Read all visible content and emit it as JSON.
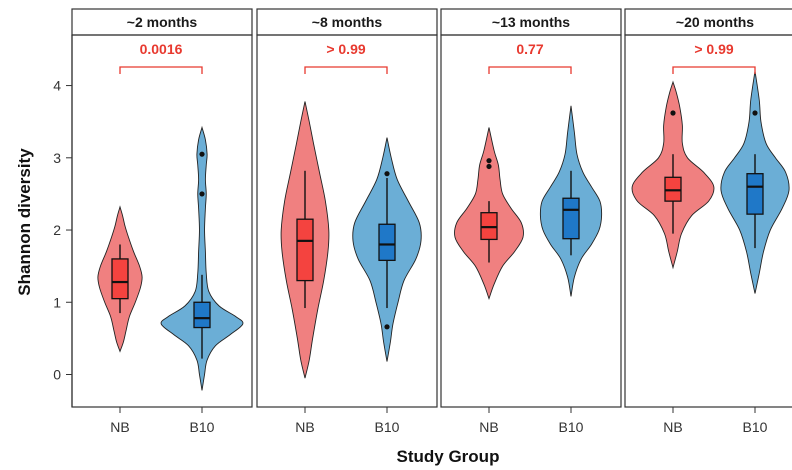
{
  "chart_data": {
    "type": "violin",
    "xlabel": "Study Group",
    "ylabel": "Shannon diversity",
    "ylim": [
      -0.45,
      4.7
    ],
    "yticks": [
      0,
      1,
      2,
      3,
      4
    ],
    "groups": [
      "NB",
      "B10"
    ],
    "colors": {
      "NB": "#F08080",
      "B10": "#6BAED6",
      "NB_box": "#F4433F",
      "B10_box": "#1F78C8",
      "pvalue": "#E8392F"
    },
    "panels": [
      {
        "label": "~2 months",
        "pvalue": "0.0016",
        "violins": [
          {
            "group": "NB",
            "min": 0.32,
            "max": 2.32,
            "profile": [
              [
                0.32,
                0.0
              ],
              [
                0.45,
                0.04
              ],
              [
                0.6,
                0.07
              ],
              [
                0.8,
                0.11
              ],
              [
                1.0,
                0.18
              ],
              [
                1.2,
                0.24
              ],
              [
                1.35,
                0.26
              ],
              [
                1.5,
                0.23
              ],
              [
                1.7,
                0.16
              ],
              [
                1.9,
                0.1
              ],
              [
                2.05,
                0.06
              ],
              [
                2.2,
                0.03
              ],
              [
                2.32,
                0.0
              ]
            ],
            "box": {
              "q1": 1.05,
              "median": 1.28,
              "q3": 1.6,
              "whisker_low": 0.85,
              "whisker_high": 1.8
            },
            "outliers": []
          },
          {
            "group": "B10",
            "min": -0.22,
            "max": 3.42,
            "profile": [
              [
                -0.22,
                0.0
              ],
              [
                0.0,
                0.03
              ],
              [
                0.2,
                0.06
              ],
              [
                0.4,
                0.16
              ],
              [
                0.55,
                0.33
              ],
              [
                0.7,
                0.48
              ],
              [
                0.8,
                0.4
              ],
              [
                0.95,
                0.2
              ],
              [
                1.15,
                0.08
              ],
              [
                1.4,
                0.05
              ],
              [
                1.7,
                0.04
              ],
              [
                2.0,
                0.03
              ],
              [
                2.3,
                0.04
              ],
              [
                2.5,
                0.05
              ],
              [
                2.7,
                0.04
              ],
              [
                2.9,
                0.05
              ],
              [
                3.05,
                0.06
              ],
              [
                3.25,
                0.04
              ],
              [
                3.42,
                0.0
              ]
            ],
            "box": {
              "q1": 0.65,
              "median": 0.78,
              "q3": 1.0,
              "whisker_low": 0.22,
              "whisker_high": 1.38
            },
            "outliers": [
              2.5,
              3.05
            ]
          }
        ]
      },
      {
        "label": "~8 months",
        "pvalue": "> 0.99",
        "violins": [
          {
            "group": "NB",
            "min": -0.05,
            "max": 3.78,
            "profile": [
              [
                -0.05,
                0.0
              ],
              [
                0.2,
                0.05
              ],
              [
                0.5,
                0.09
              ],
              [
                0.9,
                0.15
              ],
              [
                1.3,
                0.22
              ],
              [
                1.7,
                0.27
              ],
              [
                2.0,
                0.28
              ],
              [
                2.4,
                0.24
              ],
              [
                2.8,
                0.17
              ],
              [
                3.2,
                0.1
              ],
              [
                3.5,
                0.05
              ],
              [
                3.78,
                0.0
              ]
            ],
            "box": {
              "q1": 1.3,
              "median": 1.85,
              "q3": 2.15,
              "whisker_low": 0.92,
              "whisker_high": 2.82
            },
            "outliers": []
          },
          {
            "group": "B10",
            "min": 0.18,
            "max": 3.28,
            "profile": [
              [
                0.18,
                0.0
              ],
              [
                0.45,
                0.04
              ],
              [
                0.7,
                0.07
              ],
              [
                1.0,
                0.13
              ],
              [
                1.3,
                0.2
              ],
              [
                1.6,
                0.34
              ],
              [
                1.85,
                0.4
              ],
              [
                2.1,
                0.38
              ],
              [
                2.4,
                0.25
              ],
              [
                2.7,
                0.12
              ],
              [
                3.0,
                0.05
              ],
              [
                3.28,
                0.0
              ]
            ],
            "box": {
              "q1": 1.58,
              "median": 1.8,
              "q3": 2.08,
              "whisker_low": 0.92,
              "whisker_high": 2.72
            },
            "outliers": [
              0.66,
              2.78
            ]
          }
        ]
      },
      {
        "label": "~13 months",
        "pvalue": "0.77",
        "violins": [
          {
            "group": "NB",
            "min": 1.05,
            "max": 3.42,
            "profile": [
              [
                1.05,
                0.0
              ],
              [
                1.25,
                0.06
              ],
              [
                1.5,
                0.16
              ],
              [
                1.7,
                0.3
              ],
              [
                1.9,
                0.4
              ],
              [
                2.1,
                0.38
              ],
              [
                2.3,
                0.26
              ],
              [
                2.5,
                0.16
              ],
              [
                2.7,
                0.13
              ],
              [
                2.9,
                0.11
              ],
              [
                3.1,
                0.06
              ],
              [
                3.42,
                0.0
              ]
            ],
            "box": {
              "q1": 1.87,
              "median": 2.04,
              "q3": 2.24,
              "whisker_low": 1.55,
              "whisker_high": 2.4
            },
            "outliers": [
              2.88,
              2.96
            ]
          },
          {
            "group": "B10",
            "min": 1.08,
            "max": 3.72,
            "profile": [
              [
                1.08,
                0.0
              ],
              [
                1.35,
                0.04
              ],
              [
                1.6,
                0.12
              ],
              [
                1.8,
                0.24
              ],
              [
                2.0,
                0.33
              ],
              [
                2.2,
                0.36
              ],
              [
                2.4,
                0.34
              ],
              [
                2.6,
                0.24
              ],
              [
                2.8,
                0.14
              ],
              [
                3.05,
                0.07
              ],
              [
                3.35,
                0.04
              ],
              [
                3.72,
                0.0
              ]
            ],
            "box": {
              "q1": 1.88,
              "median": 2.28,
              "q3": 2.44,
              "whisker_low": 1.65,
              "whisker_high": 2.82
            },
            "outliers": []
          }
        ]
      },
      {
        "label": "~20 months",
        "pvalue": "> 0.99",
        "violins": [
          {
            "group": "NB",
            "min": 1.48,
            "max": 4.05,
            "profile": [
              [
                1.48,
                0.0
              ],
              [
                1.7,
                0.05
              ],
              [
                1.95,
                0.1
              ],
              [
                2.2,
                0.22
              ],
              [
                2.4,
                0.42
              ],
              [
                2.6,
                0.48
              ],
              [
                2.8,
                0.36
              ],
              [
                3.0,
                0.17
              ],
              [
                3.2,
                0.11
              ],
              [
                3.45,
                0.11
              ],
              [
                3.7,
                0.08
              ],
              [
                3.9,
                0.04
              ],
              [
                4.05,
                0.0
              ]
            ],
            "box": {
              "q1": 2.4,
              "median": 2.55,
              "q3": 2.73,
              "whisker_low": 1.95,
              "whisker_high": 3.05
            },
            "outliers": [
              3.62
            ]
          },
          {
            "group": "B10",
            "min": 1.12,
            "max": 4.2,
            "profile": [
              [
                1.12,
                0.0
              ],
              [
                1.4,
                0.05
              ],
              [
                1.7,
                0.1
              ],
              [
                2.0,
                0.18
              ],
              [
                2.3,
                0.32
              ],
              [
                2.55,
                0.4
              ],
              [
                2.8,
                0.36
              ],
              [
                3.0,
                0.24
              ],
              [
                3.2,
                0.13
              ],
              [
                3.5,
                0.07
              ],
              [
                3.8,
                0.05
              ],
              [
                4.2,
                0.0
              ]
            ],
            "box": {
              "q1": 2.22,
              "median": 2.6,
              "q3": 2.78,
              "whisker_low": 1.75,
              "whisker_high": 3.05
            },
            "outliers": [
              3.62
            ]
          }
        ]
      }
    ]
  }
}
